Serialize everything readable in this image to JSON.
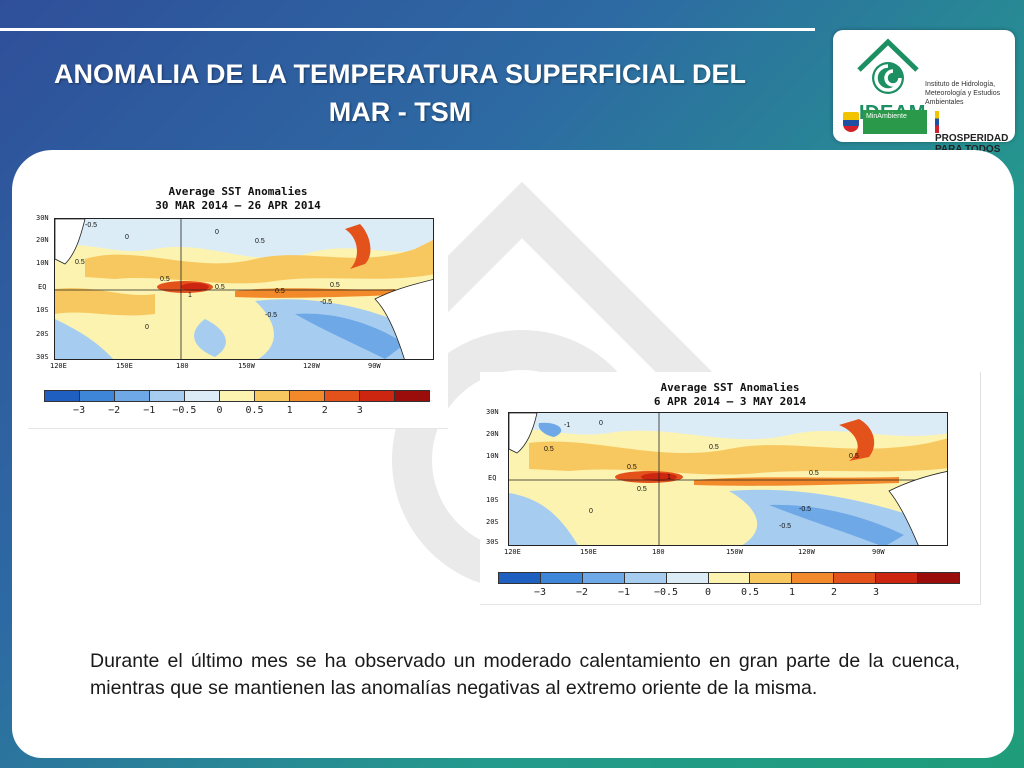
{
  "slide": {
    "title": "ANOMALIA DE LA TEMPERATURA SUPERFICIAL DEL MAR - TSM",
    "body": "Durante el último mes se ha observado un moderado calentamiento en gran parte de la cuenca, mientras que se mantienen las anomalías negativas al extremo oriente de la misma."
  },
  "logos": {
    "ideam_name": "IDEAM",
    "ideam_subtitle": "Instituto de Hidrología, Meteorología y Estudios Ambientales",
    "minambiente": "MinAmbiente",
    "prosperidad": "PROSPERIDAD PARA TODOS"
  },
  "maps": [
    {
      "title_line1": "Average SST Anomalies",
      "title_line2": "30 MAR 2014 – 26 APR 2014",
      "lat_labels": [
        "30N",
        "20N",
        "10N",
        "EQ",
        "10S",
        "20S",
        "30S"
      ],
      "lon_labels": [
        "120E",
        "150E",
        "180",
        "150W",
        "120W",
        "90W"
      ],
      "contour_labels": [
        "-0.5",
        "0.5",
        "0.5",
        "0.5",
        "0.5",
        "0.5",
        "0.5",
        "1",
        "-0.5",
        "-0.5",
        "0",
        "0",
        "0"
      ]
    },
    {
      "title_line1": "Average SST Anomalies",
      "title_line2": "6 APR 2014 – 3 MAY 2014",
      "lat_labels": [
        "30N",
        "20N",
        "10N",
        "EQ",
        "10S",
        "20S",
        "30S"
      ],
      "lon_labels": [
        "120E",
        "150E",
        "180",
        "150W",
        "120W",
        "90W"
      ],
      "contour_labels": [
        "-1",
        "0.5",
        "0.5",
        "0.5",
        "0.5",
        "0.5",
        "0.5",
        "-0.5",
        "-0.5",
        "1",
        "0",
        "0"
      ]
    }
  ],
  "colorbar": {
    "colors": [
      "#1f5fc0",
      "#3d86d8",
      "#6fa8e6",
      "#a6cdf0",
      "#dcecf7",
      "#fdf3b0",
      "#f7c860",
      "#f28a2b",
      "#e4521c",
      "#cc2510",
      "#9a0d0a"
    ],
    "labels": [
      "−3",
      "−2",
      "−1",
      "−0.5",
      "0",
      "0.5",
      "1",
      "2",
      "3"
    ]
  }
}
